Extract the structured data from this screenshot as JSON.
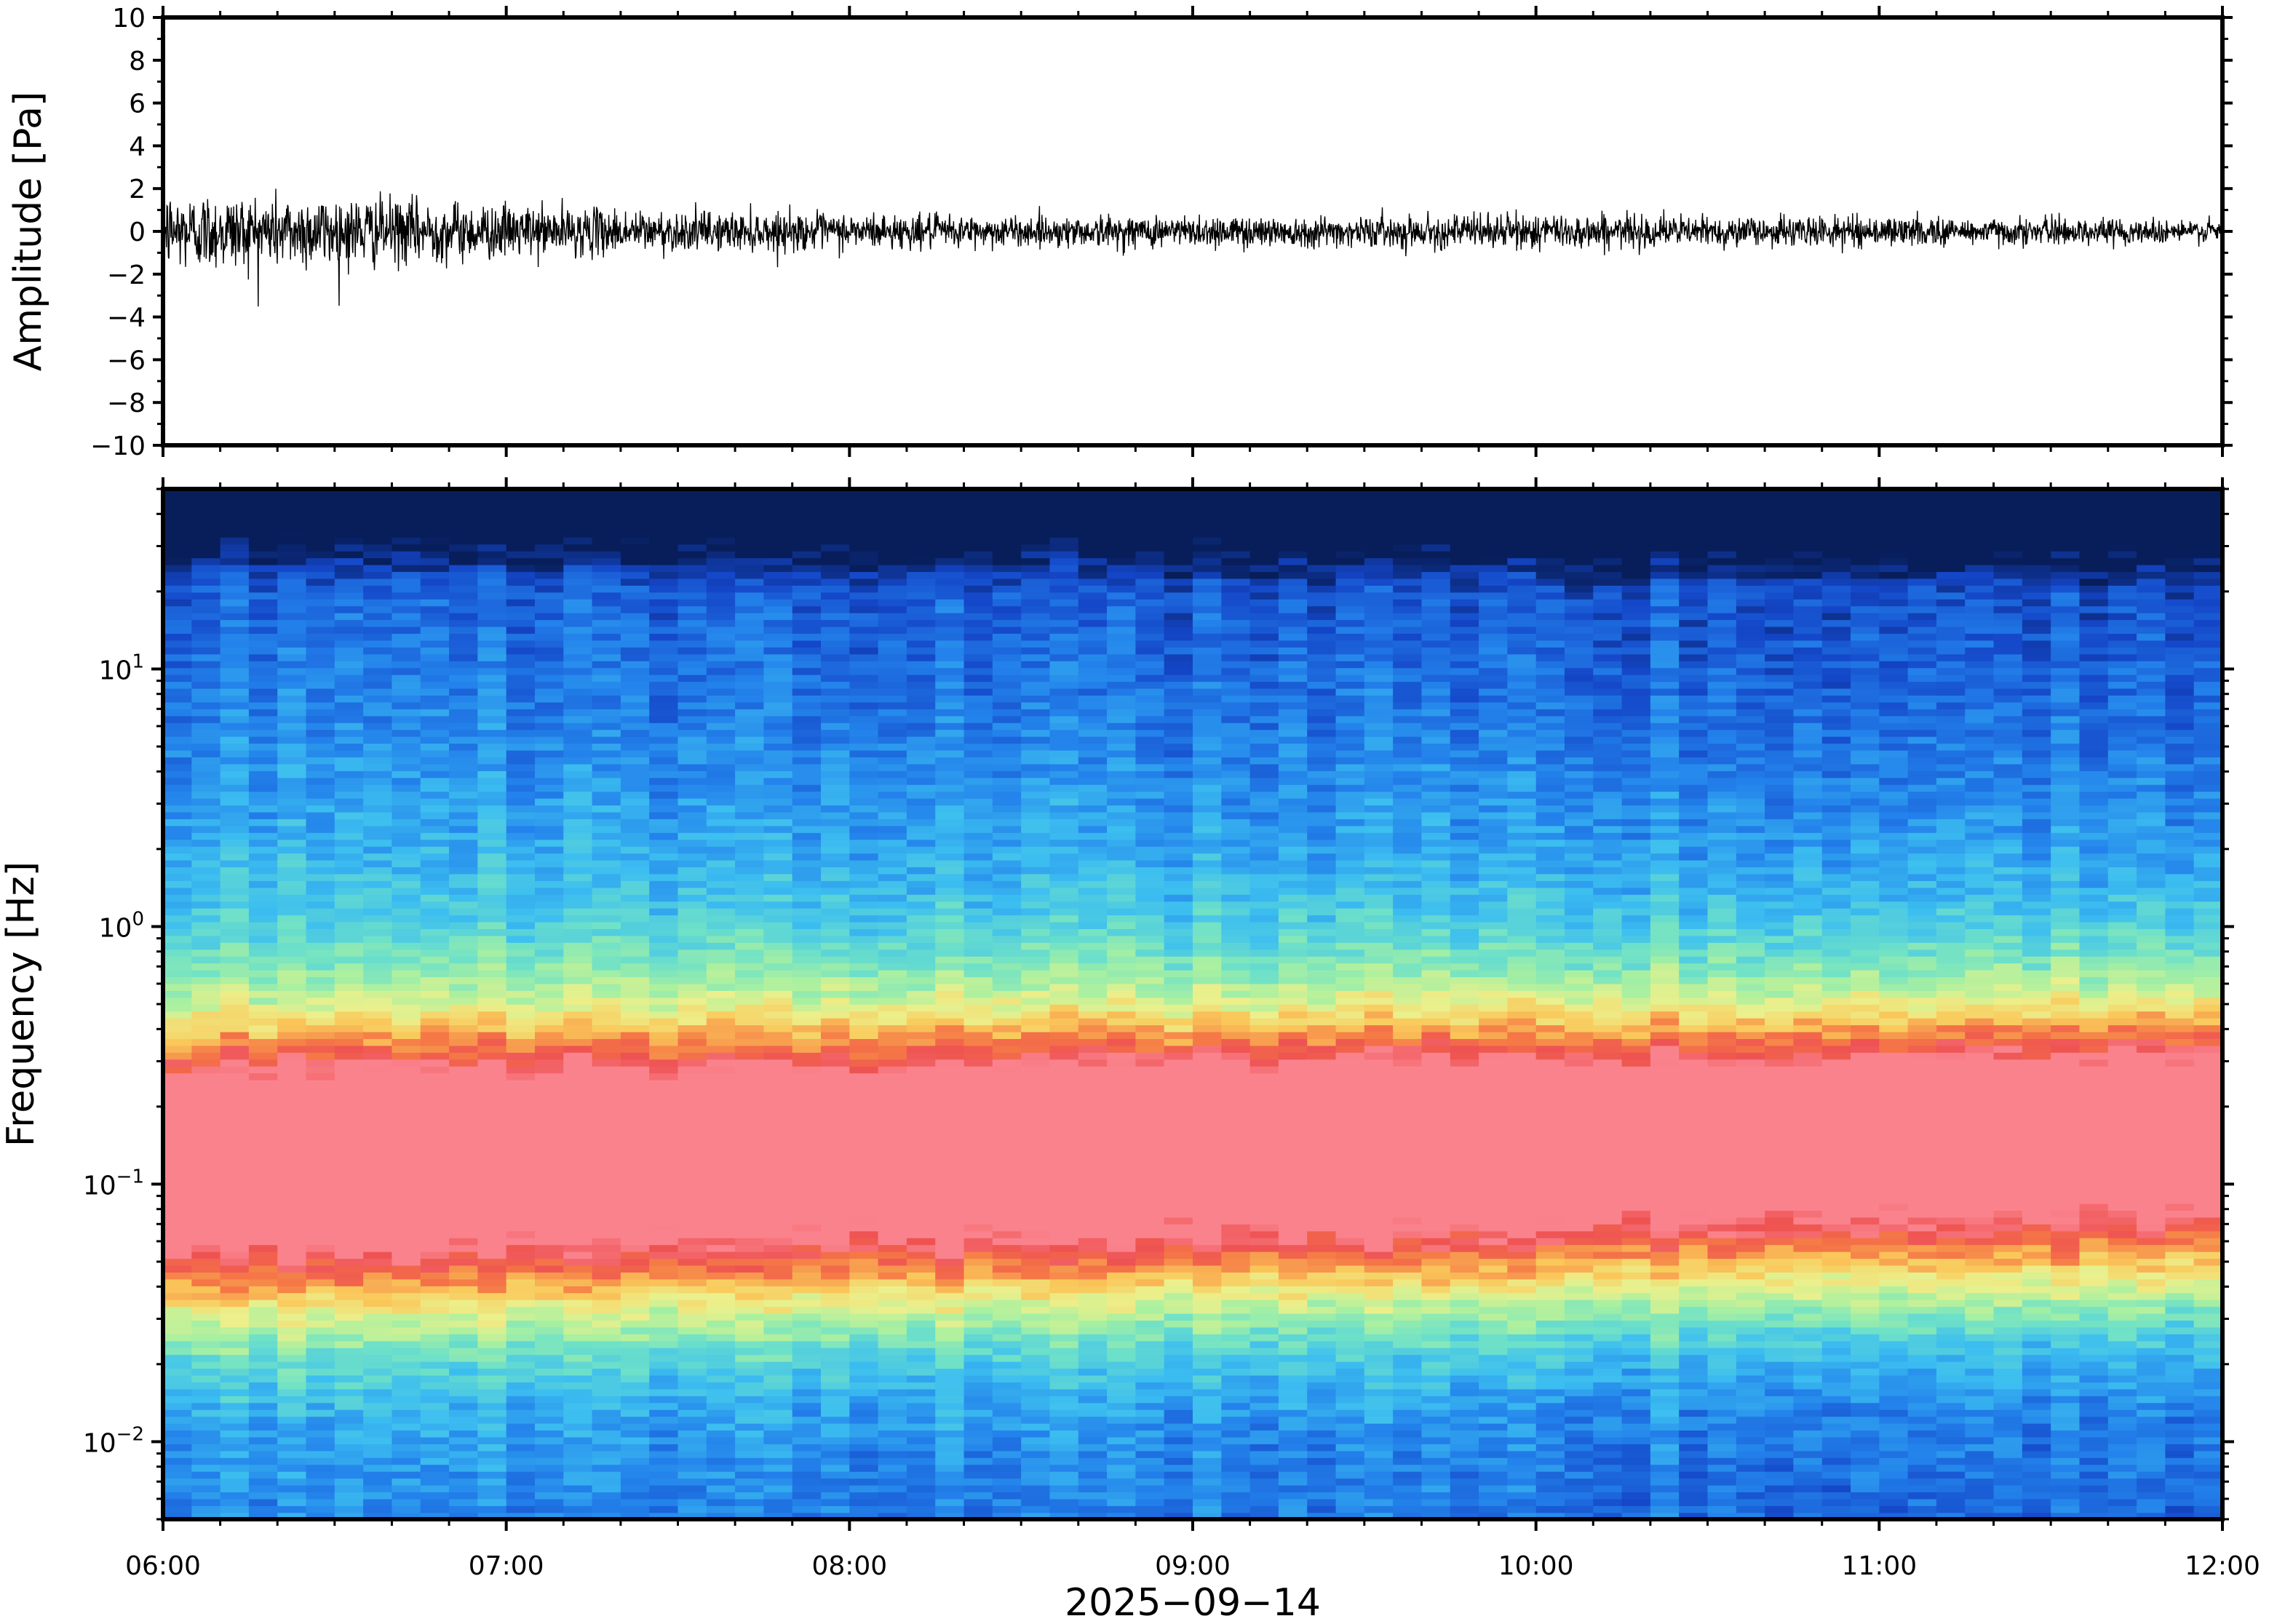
{
  "chart_data": [
    {
      "type": "line",
      "panel": "waveform",
      "ylabel": "Amplitude [Pa]",
      "xlabel": "",
      "ylim": [
        -10,
        10
      ],
      "yticks": [
        10,
        8,
        6,
        4,
        2,
        0,
        -2,
        -4,
        -6,
        -8,
        -10
      ],
      "ytick_labels": [
        "10",
        "8",
        "6",
        "4",
        "2",
        "0",
        "−2",
        "−4",
        "−6",
        "−8",
        "−10"
      ],
      "x_range": [
        "06:00",
        "12:00"
      ],
      "envelope": {
        "x_hours": [
          6.0,
          6.5,
          7.0,
          7.5,
          8.0,
          8.5,
          9.0,
          9.5,
          10.0,
          10.5,
          11.0,
          11.5,
          12.0
        ],
        "peak_amplitude": [
          2.4,
          2.2,
          1.6,
          1.2,
          1.1,
          0.9,
          1.0,
          0.9,
          1.1,
          0.9,
          0.9,
          0.8,
          0.7
        ]
      },
      "line_color": "#000000"
    },
    {
      "type": "heatmap",
      "panel": "spectrogram",
      "ylabel": "Frequency [Hz]",
      "xlabel": "2025−09−14",
      "y_scale": "log",
      "ylim": [
        0.005,
        50
      ],
      "yticks": [
        10,
        1,
        0.1,
        0.01
      ],
      "ytick_labels": [
        {
          "base": "10",
          "exp": "1"
        },
        {
          "base": "10",
          "exp": "0"
        },
        {
          "base": "10",
          "exp": "−1"
        },
        {
          "base": "10",
          "exp": "−2"
        }
      ],
      "x_ticks": [
        "06:00",
        "07:00",
        "08:00",
        "09:00",
        "10:00",
        "11:00",
        "12:00"
      ],
      "colormap": "rainbow (blue = low power, red = high power)",
      "colors": [
        "#08306b",
        "#1f6fe0",
        "#3ab8f0",
        "#7de8c0",
        "#e8f08a",
        "#f8b24a",
        "#ef5050",
        "#f88080"
      ],
      "num_time_bins": 72,
      "power_profile_note": "peak power near 0.05–0.2 Hz, decreasing toward high frequencies"
    }
  ],
  "x_axis": {
    "tick_labels": [
      "06:00",
      "07:00",
      "08:00",
      "09:00",
      "10:00",
      "11:00",
      "12:00"
    ],
    "date_label": "2025−09−14"
  }
}
